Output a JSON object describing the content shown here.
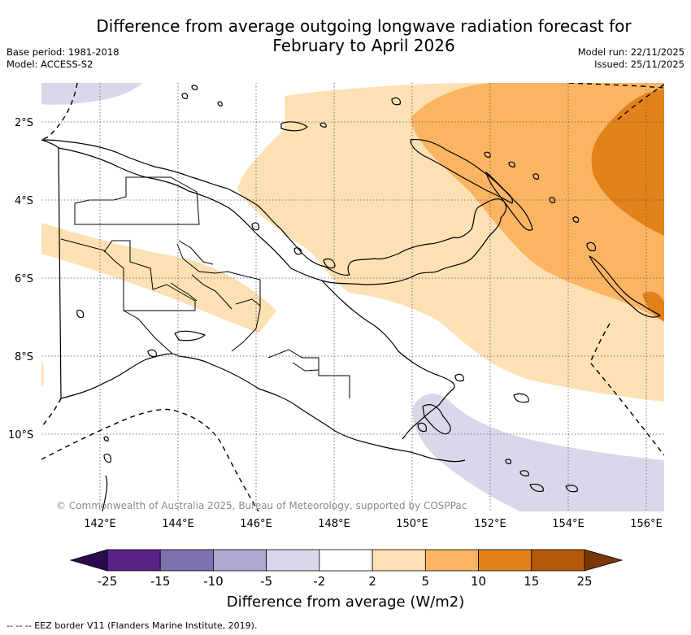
{
  "title_line1": "Difference from average outgoing longwave radiation forecast for",
  "title_line2": "February to April 2026",
  "base_period": "Base period: 1981-2018",
  "model": "Model: ACCESS-S2",
  "model_run": "Model run: 22/11/2025",
  "issued": "Issued: 25/11/2025",
  "lat_labels": [
    "2°S",
    "4°S",
    "6°S",
    "8°S",
    "10°S"
  ],
  "lon_labels": [
    "142°E",
    "144°E",
    "146°E",
    "148°E",
    "150°E",
    "152°E",
    "154°E",
    "156°E"
  ],
  "copyright": "© Commonwealth of Australia 2025, Bureau of Meteorology, supported by COSPPac",
  "colorbar": {
    "ticks": [
      "-25",
      "-15",
      "-10",
      "-5",
      "-2",
      "2",
      "5",
      "10",
      "15",
      "25"
    ],
    "colors": [
      "#2c0a4e",
      "#5a2388",
      "#8070ad",
      "#b0a8d2",
      "#d8d8ea",
      "#ffffff",
      "#fde0b4",
      "#fbb462",
      "#e2821a",
      "#b6580a",
      "#7a3808"
    ],
    "title": "Difference from average (W/m2)"
  },
  "legend_text": "--  --  -- EEZ border V11 (Flanders Marine Institute, 2019)."
}
